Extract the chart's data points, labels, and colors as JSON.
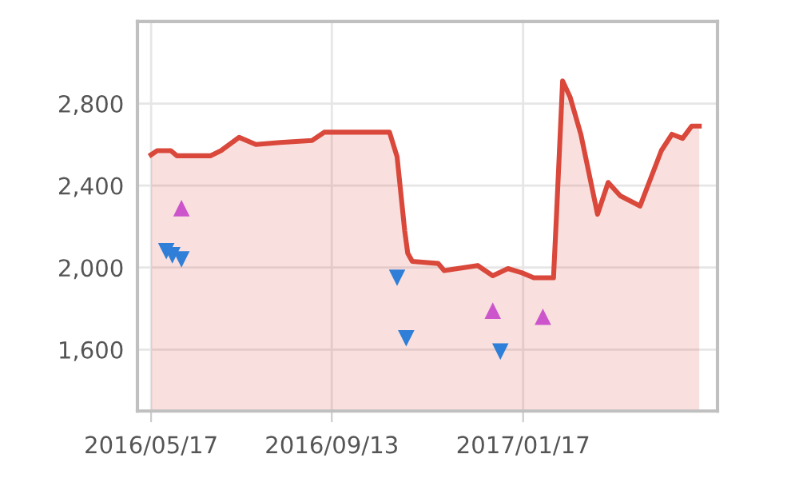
{
  "chart_data": {
    "type": "area",
    "xlim": [
      "2016-05-08",
      "2017-05-25"
    ],
    "ylim": [
      1300,
      3200
    ],
    "xticks": [
      {
        "value": "2016-05-17",
        "label": "2016/05/17"
      },
      {
        "value": "2016-09-13",
        "label": "2016/09/13"
      },
      {
        "value": "2017-01-17",
        "label": "2017/01/17"
      }
    ],
    "yticks": [
      {
        "value": 1600,
        "label": "1,600"
      },
      {
        "value": 2000,
        "label": "2,000"
      },
      {
        "value": 2400,
        "label": "2,400"
      },
      {
        "value": 2800,
        "label": "2,800"
      }
    ],
    "grid": true,
    "legend": false,
    "series": [
      {
        "color": "#d9483b",
        "marker": "none",
        "x": [
          "2016-05-17",
          "2016-05-21",
          "2016-05-30",
          "2016-06-03",
          "2016-06-25",
          "2016-07-02",
          "2016-07-14",
          "2016-07-25",
          "2016-08-10",
          "2016-08-31",
          "2016-09-08",
          "2016-10-21",
          "2016-10-26",
          "2016-10-31",
          "2016-11-02",
          "2016-11-05",
          "2016-11-22",
          "2016-11-26",
          "2016-12-18",
          "2016-12-28",
          "2017-01-07",
          "2017-01-16",
          "2017-01-24",
          "2017-02-06",
          "2017-02-08",
          "2017-02-12",
          "2017-02-17",
          "2017-02-24",
          "2017-03-07",
          "2017-03-14",
          "2017-03-22",
          "2017-04-04",
          "2017-04-18",
          "2017-04-25",
          "2017-05-02",
          "2017-05-08",
          "2017-05-13"
        ],
        "values": [
          2550,
          2570,
          2570,
          2545,
          2545,
          2570,
          2635,
          2600,
          2610,
          2620,
          2660,
          2660,
          2540,
          2180,
          2070,
          2030,
          2020,
          1985,
          2010,
          1960,
          1995,
          1975,
          1950,
          1950,
          2260,
          2910,
          2830,
          2650,
          2260,
          2415,
          2350,
          2300,
          2570,
          2650,
          2630,
          2690,
          2690
        ]
      },
      {
        "type": "scatter",
        "color": "#2f7ed8",
        "marker": "triangle_down",
        "x": [
          "2016-05-27",
          "2016-05-31",
          "2016-06-06",
          "2016-10-26",
          "2016-11-01",
          "2017-01-02"
        ],
        "values": [
          2080,
          2060,
          2040,
          1950,
          1655,
          1590
        ]
      },
      {
        "type": "scatter",
        "color": "#cc55cc",
        "marker": "triangle",
        "x": [
          "2016-06-06",
          "2016-12-28",
          "2017-01-30"
        ],
        "values": [
          2290,
          1790,
          1760
        ]
      }
    ]
  }
}
